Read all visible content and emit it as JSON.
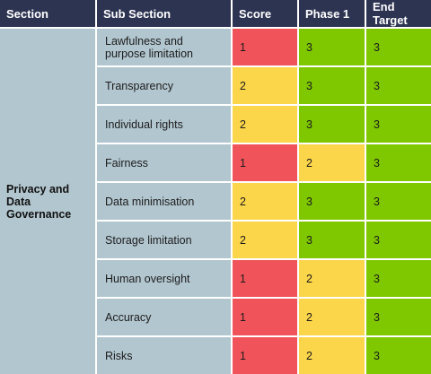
{
  "headers": {
    "section": "Section",
    "sub_section": "Sub Section",
    "score": "Score",
    "phase1": "Phase 1",
    "end_target": "End Target"
  },
  "section_name": "Privacy and Data Governance",
  "section_lines": [
    "Privacy and",
    "Data Governance"
  ],
  "colors": {
    "header": "#2d3452",
    "section_bg": "#b2c6cf",
    "level_1": "#f0545a",
    "level_2": "#fbd54a",
    "level_3": "#7fc800"
  },
  "rows": [
    {
      "sub": "Lawfulness and purpose limitation",
      "sub_lines": [
        "Lawfulness and",
        "purpose limitation"
      ],
      "score": "1",
      "phase1": "3",
      "end_target": "3"
    },
    {
      "sub": "Transparency",
      "sub_lines": [
        "Transparency"
      ],
      "score": "2",
      "phase1": "3",
      "end_target": "3"
    },
    {
      "sub": "Individual rights",
      "sub_lines": [
        "Individual rights"
      ],
      "score": "2",
      "phase1": "3",
      "end_target": "3"
    },
    {
      "sub": "Fairness",
      "sub_lines": [
        "Fairness"
      ],
      "score": "1",
      "phase1": "2",
      "end_target": "3"
    },
    {
      "sub": "Data minimisation",
      "sub_lines": [
        "Data minimisation"
      ],
      "score": "2",
      "phase1": "3",
      "end_target": "3"
    },
    {
      "sub": "Storage limitation",
      "sub_lines": [
        "Storage limitation"
      ],
      "score": "2",
      "phase1": "3",
      "end_target": "3"
    },
    {
      "sub": "Human oversight",
      "sub_lines": [
        "Human oversight"
      ],
      "score": "1",
      "phase1": "2",
      "end_target": "3"
    },
    {
      "sub": "Accuracy",
      "sub_lines": [
        "Accuracy"
      ],
      "score": "1",
      "phase1": "2",
      "end_target": "3"
    },
    {
      "sub": "Risks",
      "sub_lines": [
        "Risks"
      ],
      "score": "1",
      "phase1": "2",
      "end_target": "3"
    }
  ]
}
